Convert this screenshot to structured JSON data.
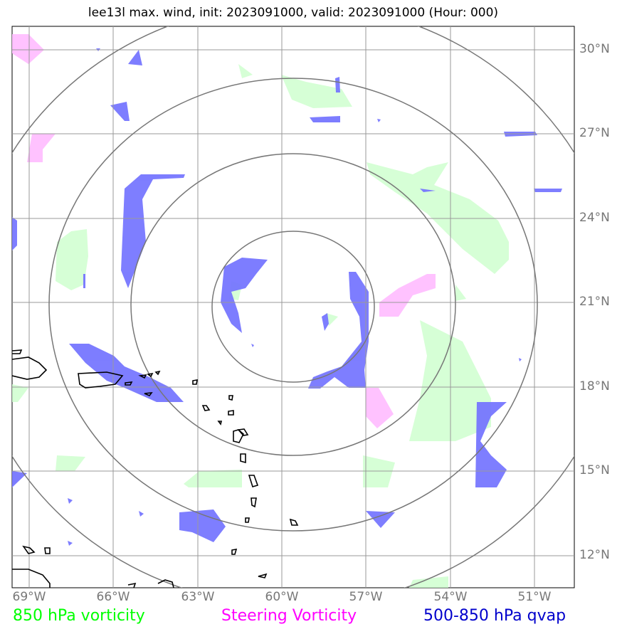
{
  "title": "lee13l max. wind, init: 2023091000, valid: 2023091000 (Hour: 000)",
  "map": {
    "lon_range": [
      -69.5,
      -49.5
    ],
    "lat_range": [
      10.7,
      31.0
    ],
    "x_ticks": [
      "69°W",
      "66°W",
      "63°W",
      "60°W",
      "57°W",
      "54°W",
      "51°W"
    ],
    "y_ticks": [
      "30°N",
      "27°N",
      "24°N",
      "21°N",
      "18°N",
      "15°N",
      "12°N"
    ],
    "range_rings": 4,
    "grid": true
  },
  "legend": {
    "vorticity_850": "850 hPa vorticity",
    "steering_vorticity": "Steering Vorticity",
    "qvap": "500-850 hPa qvap"
  },
  "colors": {
    "vorticity_850": "#00ff00",
    "steering_vorticity": "#ff00ff",
    "qvap": "#0000cc",
    "tick_label": "#777777",
    "grid": "#999999",
    "ring": "#777777"
  }
}
